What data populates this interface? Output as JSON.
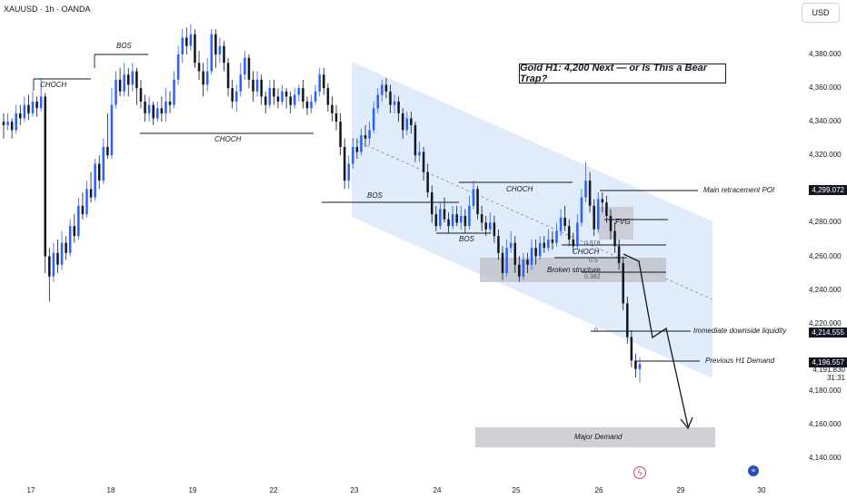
{
  "header": {
    "symbol_line": "XAUUSD · 1h · OANDA",
    "currency_button": "USD"
  },
  "chart_data": {
    "type": "candlestick",
    "title": "Gold H1: 4,200 Next — or Is This a Bear Trap?",
    "ylim": [
      4130,
      4405
    ],
    "y_ticks": [
      "4,380.000",
      "4,360.000",
      "4,340.000",
      "4,320.000",
      "4,300.000",
      "4,280.000",
      "4,260.000",
      "4,240.000",
      "4,220.000",
      "4,180.000",
      "4,160.000",
      "4,140.000"
    ],
    "y_tick_values": [
      4380,
      4360,
      4340,
      4320,
      4300,
      4280,
      4260,
      4240,
      4220,
      4180,
      4160,
      4140
    ],
    "x_ticks": [
      "17",
      "18",
      "19",
      "22",
      "23",
      "24",
      "25",
      "26",
      "29",
      "30"
    ],
    "price_labels": [
      {
        "text": "4,299.072",
        "value": 4299.072,
        "style": "tag"
      },
      {
        "text": "4,214.555",
        "value": 4214.555,
        "style": "tag"
      },
      {
        "text": "4,196.557",
        "value": 4196.557,
        "style": "tag"
      },
      {
        "text": "4,191.830",
        "value": 4191.83,
        "style": "plain"
      },
      {
        "text": "31:31",
        "value": 4187,
        "style": "plain"
      }
    ],
    "annotations": {
      "choch1": "CHOCH",
      "bos1": "BOS",
      "choch2": "CHOCH",
      "bos2": "BOS",
      "choch3": "CHOCH",
      "bos3": "BOS",
      "choch4": "CHOCH",
      "fvg": "FVG",
      "broken": "Broken structure",
      "main_poi": "Main retracement POI",
      "liquidity": "Immediate downside liquidity",
      "prev_demand": "Previous H1 Demand",
      "major_demand": "Major Demand"
    },
    "fib_levels": [
      "0.618",
      "0.5",
      "0.382",
      "0"
    ],
    "colors": {
      "up": "#2962ff",
      "down": "#131722",
      "channel": "#dbe8fb",
      "zone": "#c9cbd1"
    },
    "candles": [
      [
        4340,
        4338,
        4345,
        4330
      ],
      [
        4338,
        4340,
        4345,
        4335
      ],
      [
        4340,
        4335,
        4342,
        4330
      ],
      [
        4335,
        4345,
        4350,
        4333
      ],
      [
        4345,
        4342,
        4350,
        4338
      ],
      [
        4342,
        4350,
        4355,
        4340
      ],
      [
        4350,
        4345,
        4356,
        4341
      ],
      [
        4345,
        4352,
        4358,
        4343
      ],
      [
        4352,
        4348,
        4355,
        4343
      ],
      [
        4348,
        4355,
        4366,
        4346
      ],
      [
        4355,
        4260,
        4357,
        4250
      ],
      [
        4260,
        4248,
        4265,
        4233
      ],
      [
        4248,
        4262,
        4268,
        4245
      ],
      [
        4262,
        4255,
        4270,
        4250
      ],
      [
        4255,
        4268,
        4275,
        4252
      ],
      [
        4268,
        4262,
        4272,
        4258
      ],
      [
        4262,
        4278,
        4282,
        4260
      ],
      [
        4278,
        4272,
        4285,
        4268
      ],
      [
        4272,
        4290,
        4295,
        4270
      ],
      [
        4290,
        4285,
        4298,
        4282
      ],
      [
        4285,
        4300,
        4305,
        4283
      ],
      [
        4300,
        4295,
        4310,
        4292
      ],
      [
        4295,
        4315,
        4318,
        4293
      ],
      [
        4315,
        4305,
        4320,
        4300
      ],
      [
        4305,
        4325,
        4330,
        4303
      ],
      [
        4325,
        4320,
        4345,
        4318
      ],
      [
        4320,
        4350,
        4360,
        4318
      ],
      [
        4350,
        4365,
        4370,
        4348
      ],
      [
        4365,
        4358,
        4372,
        4355
      ],
      [
        4358,
        4368,
        4375,
        4355
      ],
      [
        4368,
        4362,
        4372,
        4355
      ],
      [
        4362,
        4370,
        4375,
        4358
      ],
      [
        4370,
        4360,
        4372,
        4350
      ],
      [
        4360,
        4352,
        4365,
        4348
      ],
      [
        4352,
        4345,
        4356,
        4340
      ],
      [
        4345,
        4350,
        4355,
        4340
      ],
      [
        4350,
        4342,
        4352,
        4338
      ],
      [
        4342,
        4348,
        4352,
        4340
      ],
      [
        4348,
        4345,
        4355,
        4340
      ],
      [
        4345,
        4352,
        4360,
        4340
      ],
      [
        4352,
        4350,
        4358,
        4345
      ],
      [
        4350,
        4365,
        4370,
        4348
      ],
      [
        4365,
        4380,
        4385,
        4362
      ],
      [
        4380,
        4390,
        4395,
        4375
      ],
      [
        4390,
        4385,
        4396,
        4380
      ],
      [
        4385,
        4392,
        4398,
        4382
      ],
      [
        4392,
        4375,
        4395,
        4372
      ],
      [
        4375,
        4370,
        4382,
        4365
      ],
      [
        4370,
        4362,
        4375,
        4355
      ],
      [
        4362,
        4370,
        4378,
        4358
      ],
      [
        4370,
        4392,
        4395,
        4368
      ],
      [
        4392,
        4380,
        4395,
        4372
      ],
      [
        4380,
        4385,
        4390,
        4375
      ],
      [
        4385,
        4375,
        4388,
        4370
      ],
      [
        4375,
        4360,
        4378,
        4355
      ],
      [
        4360,
        4352,
        4365,
        4348
      ],
      [
        4352,
        4358,
        4362,
        4346
      ],
      [
        4358,
        4368,
        4375,
        4355
      ],
      [
        4368,
        4378,
        4382,
        4365
      ],
      [
        4378,
        4365,
        4380,
        4360
      ],
      [
        4365,
        4358,
        4370,
        4352
      ],
      [
        4358,
        4365,
        4370,
        4355
      ],
      [
        4365,
        4355,
        4368,
        4350
      ],
      [
        4355,
        4350,
        4358,
        4345
      ],
      [
        4350,
        4360,
        4365,
        4348
      ],
      [
        4360,
        4355,
        4365,
        4350
      ],
      [
        4355,
        4352,
        4360,
        4348
      ],
      [
        4352,
        4358,
        4362,
        4350
      ],
      [
        4358,
        4355,
        4360,
        4348
      ],
      [
        4355,
        4350,
        4358,
        4345
      ],
      [
        4350,
        4356,
        4360,
        4348
      ],
      [
        4356,
        4360,
        4362,
        4352
      ],
      [
        4360,
        4352,
        4365,
        4348
      ],
      [
        4352,
        4348,
        4355,
        4344
      ],
      [
        4348,
        4352,
        4356,
        4345
      ],
      [
        4352,
        4358,
        4362,
        4350
      ],
      [
        4358,
        4368,
        4372,
        4355
      ],
      [
        4368,
        4360,
        4372,
        4356
      ],
      [
        4360,
        4350,
        4363,
        4346
      ],
      [
        4350,
        4345,
        4355,
        4340
      ],
      [
        4345,
        4340,
        4350,
        4335
      ],
      [
        4340,
        4325,
        4345,
        4320
      ],
      [
        4325,
        4305,
        4330,
        4300
      ],
      [
        4305,
        4315,
        4320,
        4300
      ],
      [
        4315,
        4325,
        4330,
        4312
      ],
      [
        4325,
        4322,
        4330,
        4318
      ],
      [
        4322,
        4332,
        4336,
        4320
      ],
      [
        4332,
        4330,
        4338,
        4325
      ],
      [
        4330,
        4335,
        4340,
        4326
      ],
      [
        4335,
        4348,
        4352,
        4333
      ],
      [
        4348,
        4356,
        4360,
        4345
      ],
      [
        4356,
        4362,
        4365,
        4352
      ],
      [
        4362,
        4358,
        4366,
        4354
      ],
      [
        4358,
        4350,
        4362,
        4345
      ],
      [
        4350,
        4352,
        4356,
        4345
      ],
      [
        4352,
        4345,
        4355,
        4340
      ],
      [
        4345,
        4335,
        4348,
        4330
      ],
      [
        4335,
        4342,
        4346,
        4332
      ],
      [
        4342,
        4338,
        4346,
        4333
      ],
      [
        4338,
        4320,
        4340,
        4316
      ],
      [
        4320,
        4322,
        4328,
        4316
      ],
      [
        4322,
        4310,
        4325,
        4305
      ],
      [
        4310,
        4298,
        4315,
        4295
      ],
      [
        4298,
        4285,
        4302,
        4280
      ],
      [
        4285,
        4278,
        4290,
        4275
      ],
      [
        4278,
        4288,
        4292,
        4276
      ],
      [
        4288,
        4282,
        4295,
        4280
      ],
      [
        4282,
        4278,
        4286,
        4274
      ],
      [
        4278,
        4285,
        4290,
        4276
      ],
      [
        4285,
        4280,
        4290,
        4278
      ],
      [
        4280,
        4284,
        4290,
        4276
      ],
      [
        4284,
        4278,
        4288,
        4274
      ],
      [
        4278,
        4290,
        4296,
        4276
      ],
      [
        4290,
        4300,
        4305,
        4288
      ],
      [
        4300,
        4285,
        4302,
        4282
      ],
      [
        4285,
        4280,
        4290,
        4275
      ],
      [
        4280,
        4276,
        4284,
        4272
      ],
      [
        4276,
        4280,
        4286,
        4274
      ],
      [
        4280,
        4272,
        4284,
        4268
      ],
      [
        4272,
        4262,
        4276,
        4258
      ],
      [
        4262,
        4250,
        4266,
        4246
      ],
      [
        4250,
        4265,
        4270,
        4248
      ],
      [
        4265,
        4268,
        4275,
        4262
      ],
      [
        4268,
        4255,
        4272,
        4250
      ],
      [
        4255,
        4248,
        4260,
        4245
      ],
      [
        4248,
        4258,
        4262,
        4246
      ],
      [
        4258,
        4255,
        4262,
        4250
      ],
      [
        4255,
        4265,
        4270,
        4252
      ],
      [
        4265,
        4260,
        4270,
        4255
      ],
      [
        4260,
        4268,
        4272,
        4258
      ],
      [
        4268,
        4265,
        4272,
        4262
      ],
      [
        4265,
        4270,
        4276,
        4263
      ],
      [
        4270,
        4268,
        4275,
        4264
      ],
      [
        4268,
        4275,
        4280,
        4266
      ],
      [
        4275,
        4283,
        4288,
        4272
      ],
      [
        4283,
        4278,
        4290,
        4275
      ],
      [
        4278,
        4270,
        4282,
        4266
      ],
      [
        4270,
        4266,
        4274,
        4262
      ],
      [
        4266,
        4280,
        4285,
        4264
      ],
      [
        4280,
        4295,
        4300,
        4278
      ],
      [
        4295,
        4305,
        4316,
        4292
      ],
      [
        4305,
        4290,
        4310,
        4286
      ],
      [
        4290,
        4276,
        4294,
        4272
      ],
      [
        4276,
        4294,
        4298,
        4274
      ],
      [
        4294,
        4292,
        4298,
        4286
      ],
      [
        4292,
        4284,
        4296,
        4280
      ],
      [
        4284,
        4275,
        4288,
        4270
      ],
      [
        4275,
        4266,
        4280,
        4262
      ],
      [
        4266,
        4256,
        4270,
        4252
      ],
      [
        4256,
        4232,
        4260,
        4228
      ],
      [
        4232,
        4212,
        4236,
        4208
      ],
      [
        4212,
        4198,
        4216,
        4194
      ],
      [
        4198,
        4193,
        4202,
        4188
      ],
      [
        4193,
        4196,
        4200,
        4185
      ]
    ]
  }
}
